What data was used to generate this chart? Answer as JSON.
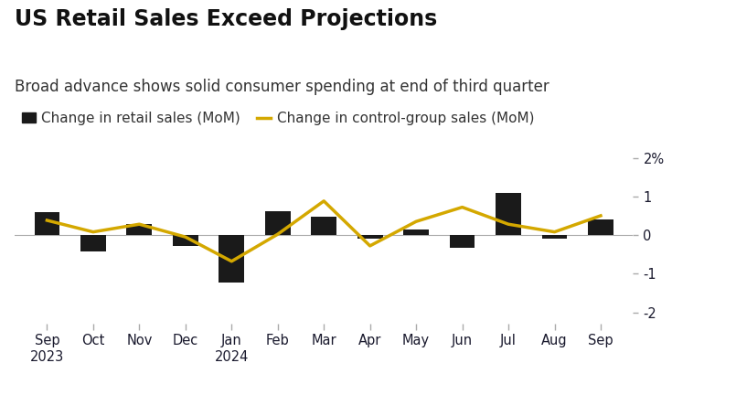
{
  "title": "US Retail Sales Exceed Projections",
  "subtitle": "Broad advance shows solid consumer spending at end of third quarter",
  "legend_bar": "Change in retail sales (MoM)",
  "legend_line": "Change in control-group sales (MoM)",
  "months": [
    "Sep\n2023",
    "Oct",
    "Nov",
    "Dec",
    "Jan\n2024",
    "Feb",
    "Mar",
    "Apr",
    "May",
    "Jun",
    "Jul",
    "Aug",
    "Sep"
  ],
  "bar_values": [
    0.6,
    -0.42,
    0.28,
    -0.28,
    -1.22,
    0.62,
    0.48,
    -0.1,
    0.14,
    -0.32,
    1.1,
    -0.1,
    0.4
  ],
  "line_values": [
    0.38,
    0.08,
    0.28,
    -0.05,
    -0.68,
    0.02,
    0.88,
    -0.28,
    0.35,
    0.72,
    0.28,
    0.08,
    0.5
  ],
  "bar_color": "#1a1a1a",
  "line_color": "#d4a800",
  "background_color": "#ffffff",
  "ylim": [
    -2.3,
    2.3
  ],
  "yticks": [
    -2,
    -1,
    0,
    1,
    2
  ],
  "ytick_labels": [
    "-2",
    "-1",
    "0",
    "1",
    "2%"
  ],
  "title_fontsize": 17,
  "subtitle_fontsize": 12,
  "legend_fontsize": 11,
  "axis_label_fontsize": 10.5,
  "line_width": 2.5,
  "tick_color": "#555566",
  "text_color": "#1a1a2e"
}
